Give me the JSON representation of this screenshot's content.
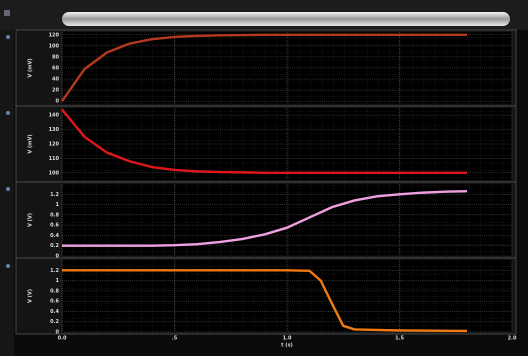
{
  "chart_data": [
    {
      "type": "line",
      "ylabel": "V (mV)",
      "grid": true,
      "xlim": [
        0,
        2
      ],
      "xticks": [
        0,
        0.5,
        1,
        1.5,
        2
      ],
      "ylim": [
        -5,
        125
      ],
      "yticks": [
        0,
        20,
        40,
        60,
        80,
        100,
        120
      ],
      "x": [
        0,
        0.1,
        0.2,
        0.3,
        0.4,
        0.5,
        0.6,
        0.7,
        0.8,
        0.9,
        1.0,
        1.1,
        1.2,
        1.3,
        1.4,
        1.5,
        1.6,
        1.7,
        1.8
      ],
      "series": [
        {
          "color": "#b5391f",
          "values": [
            0,
            58,
            88,
            104,
            112,
            116,
            118,
            119,
            119.5,
            120,
            120,
            120,
            120,
            120,
            120,
            120,
            120,
            120,
            120
          ]
        }
      ]
    },
    {
      "type": "line",
      "ylabel": "V (mV)",
      "grid": true,
      "xlim": [
        0,
        2
      ],
      "xticks": [
        0,
        0.5,
        1,
        1.5,
        2
      ],
      "ylim": [
        95,
        145
      ],
      "yticks": [
        100,
        110,
        120,
        130,
        140
      ],
      "x": [
        0,
        0.1,
        0.2,
        0.3,
        0.4,
        0.5,
        0.6,
        0.7,
        0.8,
        0.9,
        1.0,
        1.1,
        1.2,
        1.3,
        1.4,
        1.5,
        1.6,
        1.7,
        1.8
      ],
      "series": [
        {
          "color": "#e0161b",
          "values": [
            144,
            125,
            114,
            108,
            104,
            102,
            101,
            100.5,
            100.3,
            100,
            100,
            100,
            100,
            100,
            100,
            100,
            100,
            100,
            100
          ]
        }
      ]
    },
    {
      "type": "line",
      "ylabel": "V (V)",
      "grid": true,
      "xlim": [
        0,
        2
      ],
      "xticks": [
        0,
        0.5,
        1,
        1.5,
        2
      ],
      "ylim": [
        0,
        1.4
      ],
      "yticks": [
        0,
        0.2,
        0.4,
        0.6,
        0.8,
        1,
        1.2
      ],
      "x": [
        0,
        0.1,
        0.2,
        0.3,
        0.4,
        0.5,
        0.6,
        0.7,
        0.8,
        0.9,
        1.0,
        1.1,
        1.2,
        1.3,
        1.4,
        1.5,
        1.6,
        1.7,
        1.8
      ],
      "series": [
        {
          "color": "#f0a0e0",
          "values": [
            0.2,
            0.2,
            0.2,
            0.2,
            0.2,
            0.21,
            0.23,
            0.27,
            0.33,
            0.42,
            0.55,
            0.75,
            0.95,
            1.08,
            1.16,
            1.2,
            1.23,
            1.25,
            1.26
          ]
        }
      ]
    },
    {
      "type": "line",
      "ylabel": "V (V)",
      "xlabel": "t (s)",
      "grid": true,
      "xlim": [
        0,
        2
      ],
      "xticks": [
        {
          "value": 0,
          "label": "0.0"
        },
        {
          "value": 0.5,
          "label": ".5"
        },
        {
          "value": 1,
          "label": "1.0"
        },
        {
          "value": 1.5,
          "label": "1.5"
        },
        {
          "value": 2,
          "label": "2.0"
        }
      ],
      "ylim": [
        0,
        1.4
      ],
      "yticks": [
        0,
        0.2,
        0.4,
        0.6,
        0.8,
        1,
        1.2
      ],
      "x": [
        0,
        0.2,
        0.4,
        0.6,
        0.8,
        1.0,
        1.1,
        1.15,
        1.2,
        1.25,
        1.3,
        1.5,
        1.8
      ],
      "series": [
        {
          "color": "#f07a10",
          "values": [
            1.2,
            1.2,
            1.2,
            1.2,
            1.2,
            1.2,
            1.19,
            1.0,
            0.55,
            0.12,
            0.05,
            0.03,
            0.02
          ]
        }
      ]
    }
  ]
}
